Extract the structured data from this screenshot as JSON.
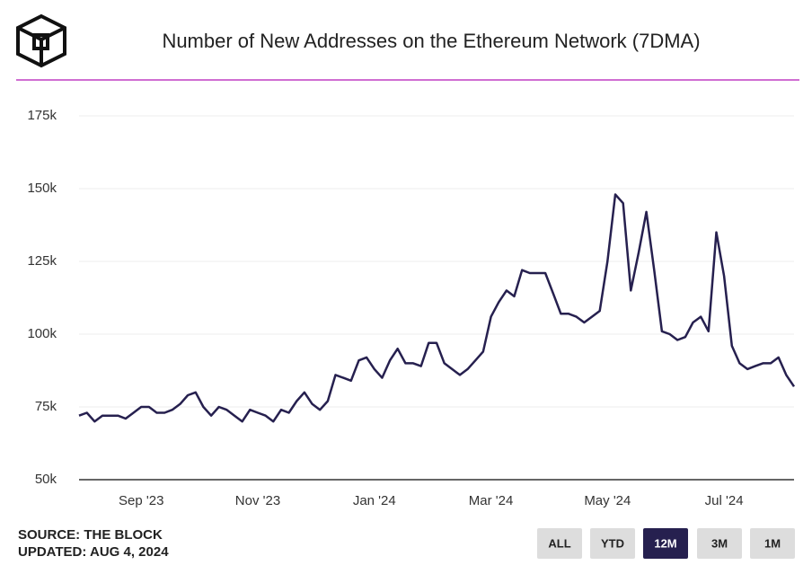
{
  "chart_data": {
    "type": "line",
    "title": "Number of New Addresses on the Ethereum Network (7DMA)",
    "categories": [
      null,
      null,
      null,
      null,
      null,
      null,
      null,
      null,
      "Sep '23",
      null,
      null,
      null,
      null,
      null,
      null,
      null,
      null,
      null,
      null,
      null,
      null,
      null,
      null,
      "Nov '23",
      null,
      null,
      null,
      null,
      null,
      null,
      null,
      null,
      null,
      null,
      null,
      null,
      null,
      null,
      "Jan '24",
      null,
      null,
      null,
      null,
      null,
      null,
      null,
      null,
      null,
      null,
      null,
      null,
      null,
      null,
      "Mar '24",
      null,
      null,
      null,
      null,
      null,
      null,
      null,
      null,
      null,
      null,
      null,
      null,
      null,
      null,
      "May '24",
      null,
      null,
      null,
      null,
      null,
      null,
      null,
      null,
      null,
      null,
      null,
      null,
      null,
      null,
      "Jul '24",
      null,
      null,
      null,
      null,
      null,
      null,
      null,
      null,
      null
    ],
    "series": [
      {
        "name": "New Addresses (7DMA)",
        "color": "#26204f",
        "values": [
          72000,
          73000,
          70000,
          72000,
          72000,
          72000,
          71000,
          73000,
          75000,
          75000,
          73000,
          73000,
          74000,
          76000,
          79000,
          80000,
          75000,
          72000,
          75000,
          74000,
          72000,
          70000,
          74000,
          73000,
          72000,
          70000,
          74000,
          73000,
          77000,
          80000,
          76000,
          74000,
          77000,
          86000,
          85000,
          84000,
          91000,
          92000,
          88000,
          85000,
          91000,
          95000,
          90000,
          90000,
          89000,
          97000,
          97000,
          90000,
          88000,
          86000,
          88000,
          91000,
          94000,
          106000,
          111000,
          115000,
          113000,
          122000,
          121000,
          121000,
          121000,
          114000,
          107000,
          107000,
          106000,
          104000,
          106000,
          108000,
          125000,
          148000,
          145000,
          115000,
          128000,
          142000,
          122000,
          101000,
          100000,
          98000,
          99000,
          104000,
          106000,
          101000,
          135000,
          120000,
          96000,
          90000,
          88000,
          89000,
          90000,
          90000,
          92000,
          86000,
          82000
        ]
      }
    ],
    "ylim": [
      50000,
      175000
    ],
    "yticks": [
      {
        "value": 50000,
        "label": "50k"
      },
      {
        "value": 75000,
        "label": "75k"
      },
      {
        "value": 100000,
        "label": "100k"
      },
      {
        "value": 125000,
        "label": "125k"
      },
      {
        "value": 150000,
        "label": "150k"
      },
      {
        "value": 175000,
        "label": "175k"
      }
    ],
    "grid": true
  },
  "source": "SOURCE: THE BLOCK",
  "updated": "UPDATED: AUG 4, 2024",
  "buttons": [
    "ALL",
    "YTD",
    "12M",
    "3M",
    "1M"
  ],
  "active_button": "12M"
}
